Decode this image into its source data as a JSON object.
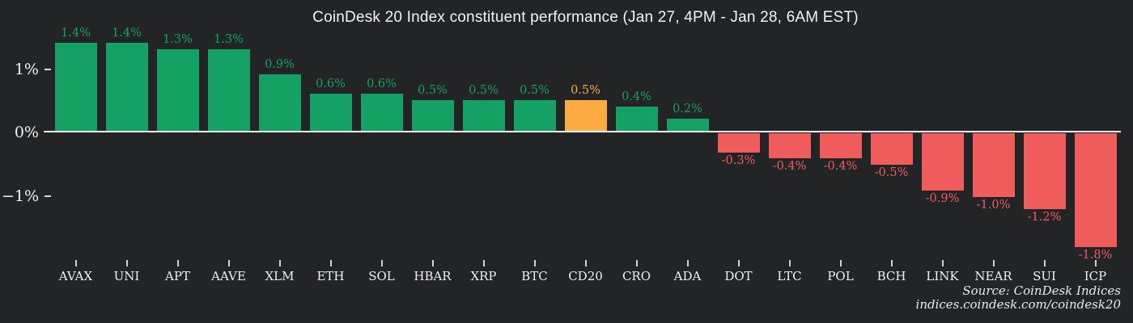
{
  "chart_data": {
    "type": "bar",
    "title": "CoinDesk 20 Index constituent performance (Jan 27, 4PM - Jan 28, 6AM EST)",
    "categories": [
      "AVAX",
      "UNI",
      "APT",
      "AAVE",
      "XLM",
      "ETH",
      "SOL",
      "HBAR",
      "XRP",
      "BTC",
      "CD20",
      "CRO",
      "ADA",
      "DOT",
      "LTC",
      "POL",
      "BCH",
      "LINK",
      "NEAR",
      "SUI",
      "ICP"
    ],
    "values": [
      1.4,
      1.4,
      1.3,
      1.3,
      0.9,
      0.6,
      0.6,
      0.5,
      0.5,
      0.5,
      0.5,
      0.4,
      0.2,
      -0.3,
      -0.4,
      -0.4,
      -0.5,
      -0.9,
      -1.0,
      -1.2,
      -1.8
    ],
    "labels": [
      "1.4%",
      "1.4%",
      "1.3%",
      "1.3%",
      "0.9%",
      "0.6%",
      "0.6%",
      "0.5%",
      "0.5%",
      "0.5%",
      "0.5%",
      "0.4%",
      "0.2%",
      "-0.3%",
      "-0.4%",
      "-0.4%",
      "-0.5%",
      "-0.9%",
      "-1.0%",
      "-1.2%",
      "-1.8%"
    ],
    "highlight_category": "CD20",
    "ylabel_ticks": [
      "1%",
      "0%",
      "−1%"
    ],
    "ylim": [
      -2.05,
      1.55
    ],
    "legend": "none",
    "grid": "zero-line-only",
    "colors": {
      "background": "#222426",
      "positive": "#16a164",
      "negative": "#f05c5c",
      "highlight": "#fdab42",
      "axis_text": "#eef0f1",
      "zero_line": "#f2f3f4"
    },
    "source": {
      "line1": "Source: CoinDesk Indices",
      "line2": "indices.coindesk.com/coindesk20"
    }
  }
}
